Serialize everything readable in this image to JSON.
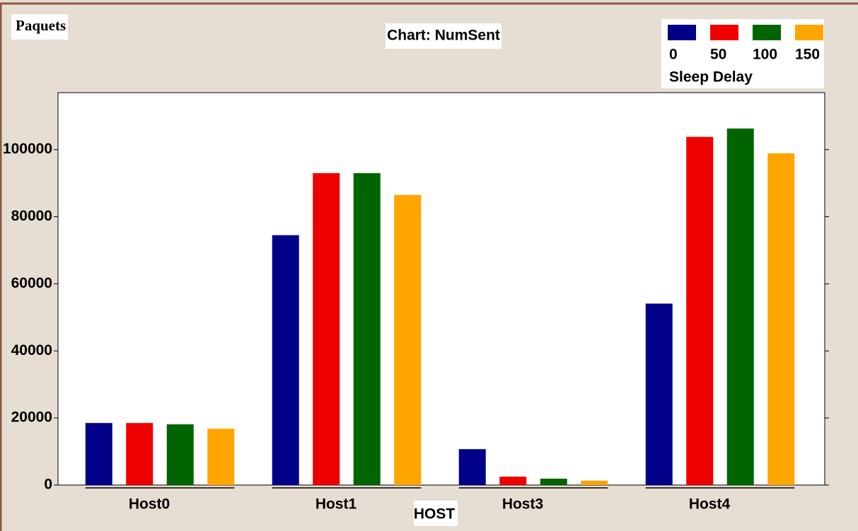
{
  "chart_data": {
    "type": "bar",
    "title": "Chart: NumSent",
    "y_label": "Paquets",
    "x_label": "HOST",
    "legend_title": "Sleep Delay",
    "legend_position": "top-right",
    "categories": [
      "Host0",
      "Host1",
      "Host3",
      "Host4"
    ],
    "series": [
      {
        "name": "0",
        "color": "#000088",
        "values": [
          18500,
          74500,
          10700,
          54100
        ]
      },
      {
        "name": "50",
        "color": "#ee0000",
        "values": [
          18500,
          93000,
          2500,
          103800
        ]
      },
      {
        "name": "100",
        "color": "#006400",
        "values": [
          18100,
          93000,
          1900,
          106300
        ]
      },
      {
        "name": "150",
        "color": "#ffa500",
        "values": [
          16800,
          86500,
          1300,
          98900
        ]
      }
    ],
    "ylim": [
      0,
      117000
    ],
    "yticks": [
      0,
      20000,
      40000,
      60000,
      80000,
      100000
    ],
    "grid": false
  }
}
